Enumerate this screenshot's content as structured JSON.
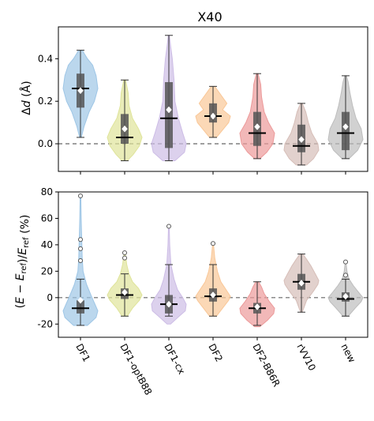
{
  "chart_data": [
    {
      "type": "violin",
      "title": "X40",
      "ylabel": "Δd (Å)",
      "ylim": [
        -0.13,
        0.55
      ],
      "yticks": [
        0.0,
        0.2,
        0.4
      ],
      "reference_line": 0.0,
      "categories": [
        "DF1",
        "DF1-optB88",
        "DF1-cx",
        "DF2",
        "DF2-B86R",
        "rVV10",
        "new"
      ],
      "series": [
        {
          "color": "#9ec6e6",
          "min": 0.03,
          "q1": 0.17,
          "median": 0.26,
          "q3": 0.33,
          "max": 0.44,
          "mean": 0.25,
          "outliers": [],
          "density": [
            [
              0.03,
              0.05
            ],
            [
              0.08,
              0.2
            ],
            [
              0.15,
              0.5
            ],
            [
              0.2,
              0.8
            ],
            [
              0.26,
              1.0
            ],
            [
              0.32,
              0.9
            ],
            [
              0.37,
              0.7
            ],
            [
              0.4,
              0.4
            ],
            [
              0.44,
              0.1
            ]
          ]
        },
        {
          "color": "#dfe49a",
          "min": -0.08,
          "q1": 0.0,
          "median": 0.03,
          "q3": 0.14,
          "max": 0.3,
          "mean": 0.07,
          "outliers": [],
          "density": [
            [
              -0.08,
              0.15
            ],
            [
              -0.05,
              0.5
            ],
            [
              -0.01,
              0.85
            ],
            [
              0.03,
              1.0
            ],
            [
              0.07,
              0.8
            ],
            [
              0.12,
              0.45
            ],
            [
              0.18,
              0.25
            ],
            [
              0.24,
              0.2
            ],
            [
              0.3,
              0.05
            ]
          ]
        },
        {
          "color": "#cdbde6",
          "min": -0.08,
          "q1": -0.02,
          "median": 0.12,
          "q3": 0.29,
          "max": 0.51,
          "mean": 0.16,
          "outliers": [],
          "density": [
            [
              -0.08,
              0.35
            ],
            [
              -0.04,
              0.9
            ],
            [
              0.0,
              1.0
            ],
            [
              0.05,
              0.8
            ],
            [
              0.12,
              0.55
            ],
            [
              0.2,
              0.35
            ],
            [
              0.3,
              0.3
            ],
            [
              0.4,
              0.2
            ],
            [
              0.46,
              0.1
            ],
            [
              0.51,
              0.03
            ]
          ]
        },
        {
          "color": "#f9c797",
          "min": 0.03,
          "q1": 0.1,
          "median": 0.13,
          "q3": 0.19,
          "max": 0.27,
          "mean": 0.13,
          "outliers": [],
          "density": [
            [
              0.03,
              0.2
            ],
            [
              0.07,
              0.6
            ],
            [
              0.1,
              0.9
            ],
            [
              0.13,
              1.0
            ],
            [
              0.16,
              0.55
            ],
            [
              0.19,
              0.8
            ],
            [
              0.23,
              0.45
            ],
            [
              0.27,
              0.1
            ]
          ]
        },
        {
          "color": "#ec9a9a",
          "min": -0.07,
          "q1": -0.01,
          "median": 0.05,
          "q3": 0.15,
          "max": 0.33,
          "mean": 0.08,
          "outliers": [],
          "density": [
            [
              -0.07,
              0.15
            ],
            [
              -0.04,
              0.55
            ],
            [
              0.0,
              0.9
            ],
            [
              0.05,
              1.0
            ],
            [
              0.1,
              0.65
            ],
            [
              0.15,
              0.4
            ],
            [
              0.22,
              0.25
            ],
            [
              0.28,
              0.2
            ],
            [
              0.33,
              0.05
            ]
          ]
        },
        {
          "color": "#d6beb8",
          "min": -0.1,
          "q1": -0.04,
          "median": -0.01,
          "q3": 0.09,
          "max": 0.19,
          "mean": 0.02,
          "outliers": [],
          "density": [
            [
              -0.1,
              0.3
            ],
            [
              -0.07,
              0.7
            ],
            [
              -0.03,
              1.0
            ],
            [
              0.0,
              0.95
            ],
            [
              0.05,
              0.6
            ],
            [
              0.1,
              0.4
            ],
            [
              0.15,
              0.25
            ],
            [
              0.19,
              0.05
            ]
          ]
        },
        {
          "color": "#bdbdbd",
          "min": -0.07,
          "q1": -0.03,
          "median": 0.05,
          "q3": 0.15,
          "max": 0.32,
          "mean": 0.08,
          "outliers": [],
          "density": [
            [
              -0.07,
              0.2
            ],
            [
              -0.03,
              0.7
            ],
            [
              0.02,
              1.0
            ],
            [
              0.07,
              0.9
            ],
            [
              0.12,
              0.6
            ],
            [
              0.18,
              0.4
            ],
            [
              0.24,
              0.25
            ],
            [
              0.29,
              0.15
            ],
            [
              0.32,
              0.05
            ]
          ]
        }
      ]
    },
    {
      "type": "violin",
      "ylabel": "(E − E_ref)/E_ref (%)",
      "ylim": [
        -30,
        80
      ],
      "yticks": [
        -20,
        0,
        20,
        40,
        60,
        80
      ],
      "reference_line": 0,
      "categories": [
        "DF1",
        "DF1-optB88",
        "DF1-cx",
        "DF2",
        "DF2-B86R",
        "rVV10",
        "new"
      ],
      "series": [
        {
          "color": "#9ec6e6",
          "min": -21,
          "q1": -12,
          "median": -8,
          "q3": -2,
          "max": 14,
          "mean": -2,
          "outliers": [
            28,
            37,
            44,
            77
          ],
          "density": [
            [
              -21,
              0.4
            ],
            [
              -15,
              0.9
            ],
            [
              -10,
              1.0
            ],
            [
              -4,
              0.8
            ],
            [
              2,
              0.6
            ],
            [
              10,
              0.35
            ],
            [
              20,
              0.15
            ],
            [
              30,
              0.1
            ],
            [
              45,
              0.07
            ],
            [
              60,
              0.04
            ],
            [
              77,
              0.02
            ]
          ]
        },
        {
          "color": "#dfe49a",
          "min": -14,
          "q1": -1,
          "median": 2,
          "q3": 7,
          "max": 18,
          "mean": 4,
          "outliers": [
            30,
            34
          ],
          "density": [
            [
              -14,
              0.15
            ],
            [
              -8,
              0.45
            ],
            [
              -2,
              0.85
            ],
            [
              2,
              1.0
            ],
            [
              7,
              0.8
            ],
            [
              12,
              0.45
            ],
            [
              18,
              0.25
            ],
            [
              25,
              0.12
            ],
            [
              34,
              0.03
            ]
          ]
        },
        {
          "color": "#cdbde6",
          "min": -14,
          "q1": -12,
          "median": -5,
          "q3": 2,
          "max": 25,
          "mean": -5,
          "outliers": [
            54
          ],
          "density": [
            [
              -20,
              0.1
            ],
            [
              -14,
              0.6
            ],
            [
              -10,
              0.95
            ],
            [
              -5,
              1.0
            ],
            [
              0,
              0.8
            ],
            [
              6,
              0.5
            ],
            [
              14,
              0.3
            ],
            [
              25,
              0.12
            ],
            [
              40,
              0.05
            ],
            [
              54,
              0.02
            ]
          ]
        },
        {
          "color": "#f9c797",
          "min": -14,
          "q1": -3,
          "median": 1,
          "q3": 7,
          "max": 25,
          "mean": 2,
          "outliers": [
            41
          ],
          "density": [
            [
              -14,
              0.2
            ],
            [
              -8,
              0.55
            ],
            [
              -2,
              0.9
            ],
            [
              1,
              1.0
            ],
            [
              6,
              0.75
            ],
            [
              12,
              0.45
            ],
            [
              20,
              0.25
            ],
            [
              30,
              0.1
            ],
            [
              41,
              0.02
            ]
          ]
        },
        {
          "color": "#ec9a9a",
          "min": -21,
          "q1": -12,
          "median": -8,
          "q3": -4,
          "max": 12,
          "mean": -7,
          "outliers": [],
          "density": [
            [
              -22,
              0.15
            ],
            [
              -17,
              0.6
            ],
            [
              -12,
              0.95
            ],
            [
              -8,
              1.0
            ],
            [
              -3,
              0.7
            ],
            [
              3,
              0.4
            ],
            [
              8,
              0.25
            ],
            [
              12,
              0.08
            ]
          ]
        },
        {
          "color": "#d6beb8",
          "min": -11,
          "q1": 6,
          "median": 12,
          "q3": 18,
          "max": 33,
          "mean": 11,
          "outliers": [],
          "density": [
            [
              -11,
              0.05
            ],
            [
              -2,
              0.3
            ],
            [
              5,
              0.7
            ],
            [
              10,
              0.95
            ],
            [
              13,
              1.0
            ],
            [
              18,
              0.8
            ],
            [
              24,
              0.55
            ],
            [
              29,
              0.3
            ],
            [
              33,
              0.08
            ]
          ]
        },
        {
          "color": "#bdbdbd",
          "min": -14,
          "q1": -3,
          "median": -1,
          "q3": 4,
          "max": 14,
          "mean": 1,
          "outliers": [
            17,
            27
          ],
          "density": [
            [
              -14,
              0.15
            ],
            [
              -8,
              0.55
            ],
            [
              -3,
              0.9
            ],
            [
              0,
              1.0
            ],
            [
              4,
              0.75
            ],
            [
              9,
              0.45
            ],
            [
              14,
              0.2
            ],
            [
              20,
              0.08
            ],
            [
              27,
              0.02
            ]
          ]
        }
      ]
    }
  ]
}
